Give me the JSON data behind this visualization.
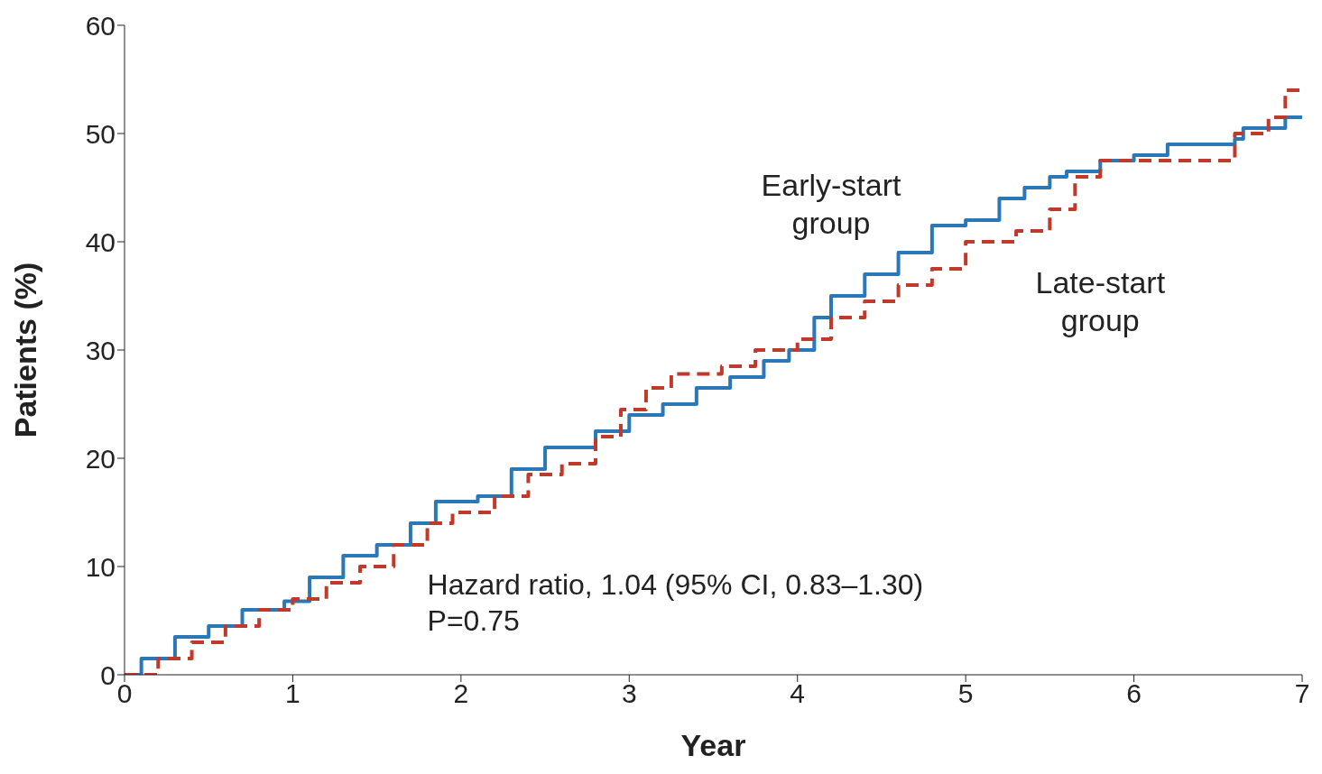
{
  "chart_data": {
    "type": "step",
    "xlabel": "Year",
    "ylabel": "Patients (%)",
    "xlim": [
      0,
      7
    ],
    "xticks": [
      0,
      1,
      2,
      3,
      4,
      5,
      6,
      7
    ],
    "ylim": [
      0,
      60
    ],
    "yticks": [
      0,
      10,
      20,
      30,
      40,
      50,
      60
    ],
    "grid": false,
    "marker": "none",
    "series": [
      {
        "name": "Early-start group",
        "color": "#2a78b8",
        "line_style": "solid",
        "x": [
          0,
          0.1,
          0.3,
          0.5,
          0.7,
          0.95,
          1.1,
          1.3,
          1.5,
          1.7,
          1.85,
          2.1,
          2.3,
          2.5,
          2.8,
          3.0,
          3.2,
          3.4,
          3.6,
          3.8,
          3.95,
          4.1,
          4.2,
          4.4,
          4.6,
          4.8,
          5.0,
          5.2,
          5.35,
          5.5,
          5.6,
          5.8,
          6.0,
          6.2,
          6.6,
          6.65,
          6.9,
          7.0
        ],
        "values": [
          0,
          1.5,
          3.5,
          4.5,
          6,
          6.8,
          9,
          11,
          12,
          14,
          16,
          16.5,
          19,
          21,
          22.5,
          24,
          25,
          26.5,
          27.5,
          29,
          30,
          33,
          35,
          37,
          39,
          41.5,
          42,
          44,
          45,
          46,
          46.5,
          47.5,
          48,
          49,
          49.5,
          50.5,
          51.5,
          51.5
        ]
      },
      {
        "name": "Late-start group",
        "color": "#c0392b",
        "line_style": "dashed",
        "x": [
          0,
          0.2,
          0.4,
          0.6,
          0.8,
          1.0,
          1.2,
          1.4,
          1.6,
          1.8,
          1.95,
          2.2,
          2.4,
          2.6,
          2.8,
          2.95,
          3.1,
          3.25,
          3.55,
          3.75,
          4.0,
          4.2,
          4.4,
          4.6,
          4.8,
          5.0,
          5.3,
          5.5,
          5.65,
          5.8,
          6.0,
          6.5,
          6.6,
          6.8,
          6.9,
          7.0
        ],
        "values": [
          0,
          1.5,
          3,
          4.5,
          6,
          7,
          8.5,
          10,
          12,
          14,
          15,
          16.5,
          18.5,
          19.5,
          22,
          24.5,
          26.5,
          27.8,
          28.5,
          30,
          31,
          33,
          34.5,
          36,
          37.5,
          40,
          41,
          43,
          46,
          47.5,
          47.5,
          47.5,
          50,
          51.5,
          54,
          54
        ]
      }
    ],
    "annotations": [
      "Hazard ratio, 1.04 (95% CI, 0.83–1.30)",
      "P=0.75"
    ]
  }
}
